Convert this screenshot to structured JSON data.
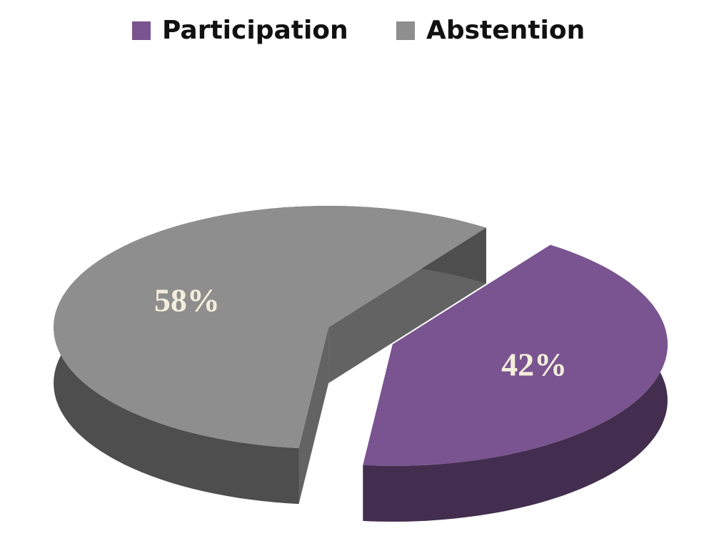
{
  "chart_data": {
    "type": "pie",
    "categories": [
      "Participation",
      "Abstention"
    ],
    "series": [
      {
        "values": [
          42,
          58
        ],
        "value_labels": [
          "42%",
          "58%"
        ],
        "colors": [
          "#7a5490",
          "#8e8e8e"
        ]
      }
    ],
    "legend": "top"
  }
}
